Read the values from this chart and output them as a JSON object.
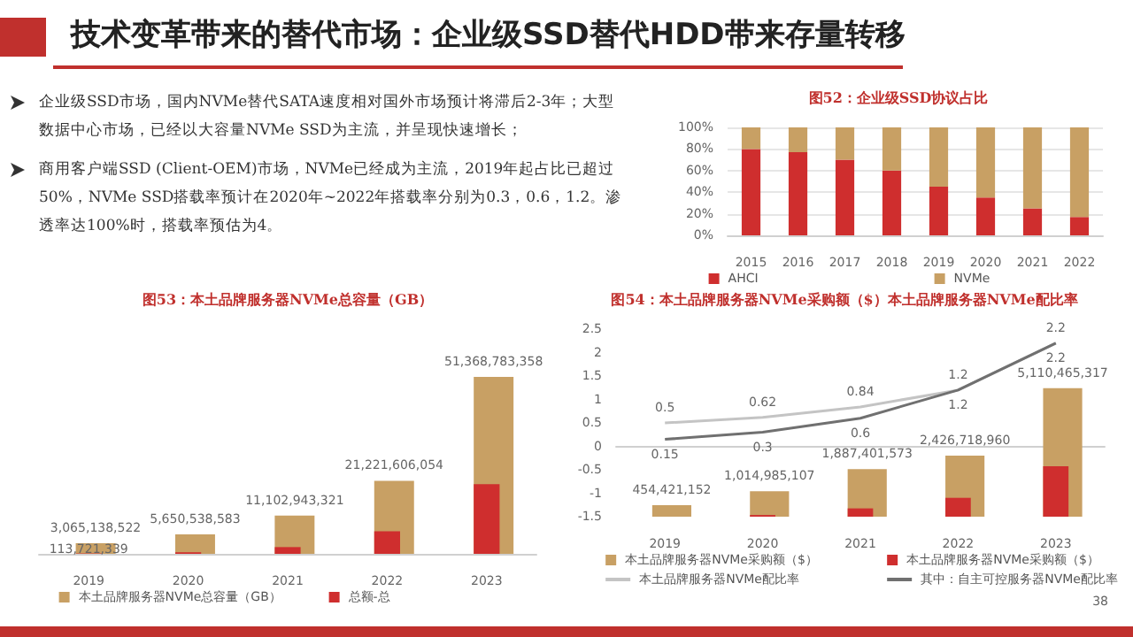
{
  "chart_data": [
    {
      "type": "other",
      "title": "技术变革带来的替代市场：企业级SSD替代HDD带来存量转移",
      "annotations": [
        "企业级SSD市场，国内NVMe替代SATA速度相对国外市场预计将滞后2-3年；大型数据中心市场，已经以大容量NVMe SSD为主流，并呈现快速增长；",
        "商用客户端SSD (Client-OEM)市场，NVMe已经成为主流，2019年起占比已超过50%，NVMe SSD搭载率预计在2020年~2022年搭载率分别为0.3，0.6，1.2。渗透率达100%时，搭载率预估为4。",
        "38"
      ]
    },
    {
      "type": "bar",
      "title": "图52：企业级SSD协议占比",
      "categories": [
        "2015",
        "2016",
        "2017",
        "2018",
        "2019",
        "2020",
        "2021",
        "2022"
      ],
      "stacked": true,
      "ylim": [
        0,
        100
      ],
      "yticks": [
        {
          "value": 0,
          "label": "0%"
        },
        {
          "value": 20,
          "label": "20%"
        },
        {
          "value": 40,
          "label": "40%"
        },
        {
          "value": 60,
          "label": "60%"
        },
        {
          "value": 80,
          "label": "80%"
        },
        {
          "value": 100,
          "label": "100%"
        }
      ],
      "grid": "y",
      "legend": "bottom",
      "series": [
        {
          "name": "AHCI",
          "color": "#cf2e2e",
          "values": [
            80,
            77,
            70,
            60,
            45,
            35,
            25,
            17
          ]
        },
        {
          "name": "NVMe",
          "color": "#c8a064",
          "values": [
            20,
            23,
            30,
            40,
            55,
            65,
            75,
            83
          ]
        }
      ]
    },
    {
      "type": "bar",
      "title": "图53：本土品牌服务器NVMe总容量（GB）",
      "categories": [
        "2019",
        "2020",
        "2021",
        "2022",
        "2023"
      ],
      "tick_labels": "x",
      "legend": "bottom",
      "series": [
        {
          "name": "本土品牌服务器NVMe总容量（GB）",
          "color": "#c8a064",
          "values": [
            3065138522,
            5650538583,
            11102943321,
            21221606054,
            51368783358
          ],
          "value_labels": [
            "3,065,138,522",
            "5,650,538,583",
            "11,102,943,321",
            "21,221,606,054",
            "51,368,783,358"
          ]
        },
        {
          "name": "总额-总",
          "color": "#cf2e2e",
          "values": [
            113721339,
            454000000,
            1960000000,
            6550000000,
            20200000000
          ],
          "value_labels": [
            "113,721,339",
            null,
            null,
            null,
            null
          ]
        }
      ]
    },
    {
      "type": "bar",
      "title": "图54：本土品牌服务器NVMe采购额（$）本土品牌服务器NVMe配比率",
      "categories": [
        "2019",
        "2020",
        "2021",
        "2022",
        "2023"
      ],
      "ylim": [
        -1.5,
        2.5
      ],
      "yticks": [
        -1.5,
        -1,
        -0.5,
        0,
        0.5,
        1,
        1.5,
        2,
        2.5
      ],
      "marker": "none",
      "legend": "bottom",
      "series": [
        {
          "name": "本土品牌服务器NVMe采购额（$）",
          "color": "#c8a064",
          "axis": "y2",
          "values": [
            454421152,
            1014985107,
            1887401573,
            2426718960,
            5110465317
          ],
          "value_labels": [
            "454,421,152",
            "1,014,985,107",
            "1,887,401,573",
            "2,426,718,960",
            "5,110,465,317"
          ]
        },
        {
          "name": "本土品牌服务器NVMe采购额（$）",
          "color": "#cf2e2e",
          "axis": "y2",
          "values": [
            null,
            67000000,
            330000000,
            750000000,
            2010000000
          ]
        },
        {
          "name": "本土品牌服务器NVMe配比率",
          "type": "line",
          "color": "#c4c4c4",
          "values": [
            0.5,
            0.62,
            0.84,
            1.2,
            2.2
          ],
          "data_labels": true
        },
        {
          "name": "其中：自主可控服务器NVMe配比率",
          "type": "line",
          "color": "#707070",
          "values": [
            0.15,
            0.3,
            0.6,
            1.2,
            2.2
          ],
          "data_labels": true
        }
      ]
    }
  ]
}
